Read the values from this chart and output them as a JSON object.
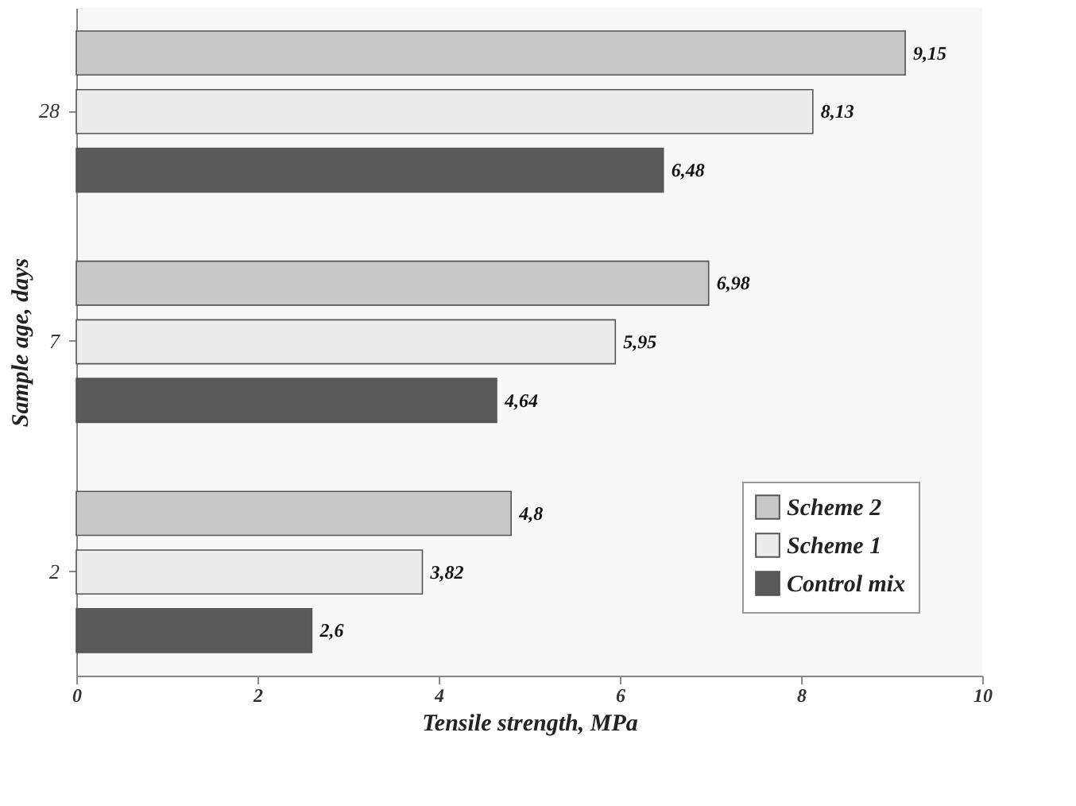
{
  "chart_data": {
    "type": "bar",
    "orientation": "horizontal",
    "xlabel": "Tensile strength, MPa",
    "ylabel": "Sample age, days",
    "categories": [
      "28",
      "7",
      "2"
    ],
    "series": [
      {
        "name": "Scheme 2",
        "color": "#c8c8c8",
        "values": [
          9.15,
          6.98,
          4.8
        ],
        "value_labels": [
          "9,15",
          "6,98",
          "4,8"
        ]
      },
      {
        "name": "Scheme 1",
        "color": "#ececec",
        "values": [
          8.13,
          5.95,
          3.82
        ],
        "value_labels": [
          "8,13",
          "5,95",
          "3,82"
        ]
      },
      {
        "name": "Control mix",
        "color": "#595959",
        "values": [
          6.48,
          4.64,
          2.6
        ],
        "value_labels": [
          "6,48",
          "4,64",
          "2,6"
        ]
      }
    ],
    "xlim": [
      0,
      10
    ],
    "xticks": [
      0,
      2,
      4,
      6,
      8,
      10
    ],
    "grid": false,
    "legend": "bottom right"
  }
}
